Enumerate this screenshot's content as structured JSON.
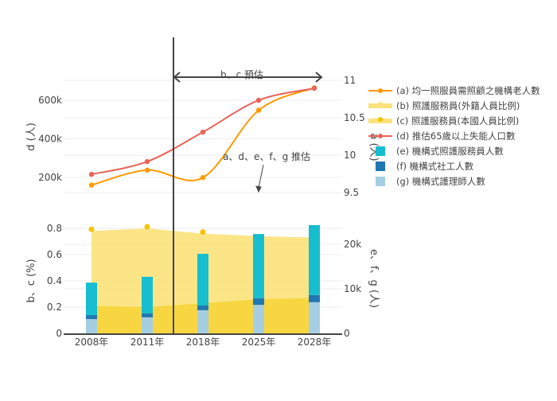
{
  "chart_data": [
    {
      "type": "line",
      "categories": [
        "2008年",
        "2011年",
        "2018年",
        "2025年",
        "2028年"
      ],
      "left_axis": {
        "label": "d (人)",
        "ticks": [
          "200k",
          "400k",
          "600k"
        ],
        "range": [
          100000,
          750000
        ]
      },
      "right_axis": {
        "label": "a (人)",
        "ticks": [
          "9.5",
          "10",
          "10.5",
          "11"
        ],
        "range": [
          9.4,
          11.05
        ]
      },
      "series": [
        {
          "name": "(a) 均一照服員需照顧之機構老人數",
          "axis": "right",
          "values": [
            9.6,
            9.8,
            9.7,
            10.6,
            10.9
          ],
          "color": "#ff9900"
        },
        {
          "name": "(d) 推估65歲以上失能人口數",
          "axis": "left",
          "values": [
            216000,
            282000,
            435000,
            600000,
            662000
          ],
          "color": "#e8645a"
        }
      ],
      "annotations": [
        {
          "text": "b、c 預估"
        },
        {
          "text": "a、d、e、f、g 推估"
        }
      ],
      "grid": true
    },
    {
      "type": "bar",
      "categories": [
        "2008年",
        "2011年",
        "2018年",
        "2025年",
        "2028年"
      ],
      "left_axis": {
        "label": "b、c (%)",
        "ticks": [
          "0",
          "0.2",
          "0.4",
          "0.6",
          "0.8"
        ],
        "range": [
          0,
          0.92
        ]
      },
      "right_axis": {
        "label": "e、f、g (人)",
        "ticks": [
          "0",
          "10k",
          "20k"
        ],
        "range": [
          0,
          27000
        ]
      },
      "series": [
        {
          "name": "(b) 照護服務員(外籍人員比例)",
          "type": "area",
          "axis": "left",
          "values": [
            0.21,
            0.2,
            0.23,
            0.26,
            0.27
          ],
          "color": "#f7d335"
        },
        {
          "name": "(c) 照護服務員(本國人員比例)",
          "type": "area",
          "axis": "left",
          "values": [
            0.78,
            0.8,
            0.76,
            0.74,
            0.73
          ],
          "color": "#fbe27a",
          "marker_color": "#f5c400"
        },
        {
          "name": "(g) 機構式護理師人數",
          "type": "bar",
          "axis": "right",
          "values": [
            3200,
            3600,
            5200,
            6400,
            7000
          ],
          "color": "#a6cee3"
        },
        {
          "name": "(f) 機構式社工人數",
          "type": "bar",
          "axis": "right",
          "values": [
            900,
            900,
            1050,
            1500,
            1600
          ],
          "color": "#1f78b4"
        },
        {
          "name": "(e) 機構式照護服務員人數",
          "type": "bar",
          "axis": "right",
          "values": [
            7300,
            8200,
            11600,
            14400,
            15700
          ],
          "color": "#17becf"
        }
      ],
      "grid": true
    }
  ],
  "legend": {
    "placement": "right",
    "items": [
      {
        "label": "(a) 均一照服員需照顧之機構老人數",
        "kind": "line",
        "color": "#ff9900"
      },
      {
        "label": "(b) 照護服務員(外籍人員比例)",
        "kind": "area",
        "color": "#fbe27a",
        "marker": "#fbe27a"
      },
      {
        "label": "(c) 照護服務員(本國人員比例)",
        "kind": "area",
        "color": "#fbe27a",
        "marker": "#f5c400"
      },
      {
        "label": "(d) 推估65歲以上失能人口數",
        "kind": "line",
        "color": "#e8645a"
      },
      {
        "label": "(e) 機構式照護服務員人數",
        "kind": "bar",
        "color": "#17becf"
      },
      {
        "label": "(f) 機構式社工人數",
        "kind": "bar",
        "color": "#1f78b4"
      },
      {
        "label": "(g) 機構式護理師人數",
        "kind": "bar",
        "color": "#a6cee3"
      }
    ]
  }
}
